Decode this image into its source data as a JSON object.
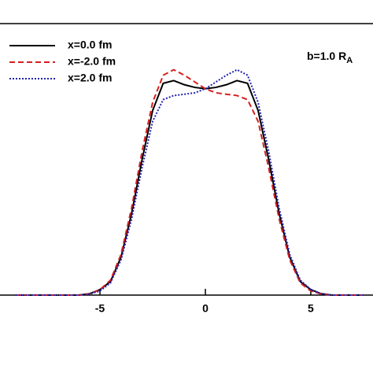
{
  "chart_data": {
    "type": "line",
    "annotation": "b=1.0 R",
    "annotation_sub": "A",
    "x": [
      -9,
      -8.5,
      -8,
      -7.5,
      -7,
      -6.5,
      -6,
      -5.5,
      -5,
      -4.5,
      -4,
      -3.5,
      -3,
      -2.5,
      -2,
      -1.5,
      -1,
      -0.5,
      0,
      0.5,
      1,
      1.5,
      2,
      2.5,
      3,
      3.5,
      4,
      4.5,
      5,
      5.5,
      6,
      6.5,
      7,
      7.5
    ],
    "series": [
      {
        "name": "x=0.0 fm",
        "color": "#000000",
        "dash": "solid",
        "values": [
          0,
          0,
          0,
          0,
          0,
          0,
          0,
          0.005,
          0.02,
          0.05,
          0.14,
          0.3,
          0.5,
          0.68,
          0.78,
          0.79,
          0.775,
          0.765,
          0.76,
          0.765,
          0.775,
          0.79,
          0.78,
          0.68,
          0.5,
          0.3,
          0.14,
          0.05,
          0.02,
          0.005,
          0,
          0,
          0,
          0
        ]
      },
      {
        "name": "x=-2.0 fm",
        "color": "#d42020",
        "dash": "dashed",
        "values": [
          0,
          0,
          0,
          0,
          0,
          0,
          0,
          0.005,
          0.02,
          0.055,
          0.15,
          0.32,
          0.53,
          0.71,
          0.81,
          0.83,
          0.81,
          0.785,
          0.76,
          0.745,
          0.74,
          0.735,
          0.72,
          0.64,
          0.47,
          0.28,
          0.13,
          0.045,
          0.015,
          0.004,
          0,
          0,
          0,
          0
        ]
      },
      {
        "name": "x=2.0 fm",
        "color": "#2020b0",
        "dash": "dotted",
        "values": [
          0,
          0,
          0,
          0,
          0,
          0,
          0,
          0.004,
          0.015,
          0.045,
          0.13,
          0.28,
          0.47,
          0.64,
          0.72,
          0.735,
          0.74,
          0.745,
          0.76,
          0.785,
          0.81,
          0.83,
          0.81,
          0.71,
          0.53,
          0.32,
          0.15,
          0.055,
          0.02,
          0.005,
          0,
          0,
          0,
          0
        ]
      }
    ],
    "xlim": [
      -9.74,
      7.95
    ],
    "xticks": [
      -5,
      0,
      5
    ],
    "ylim": [
      0,
      1
    ]
  }
}
